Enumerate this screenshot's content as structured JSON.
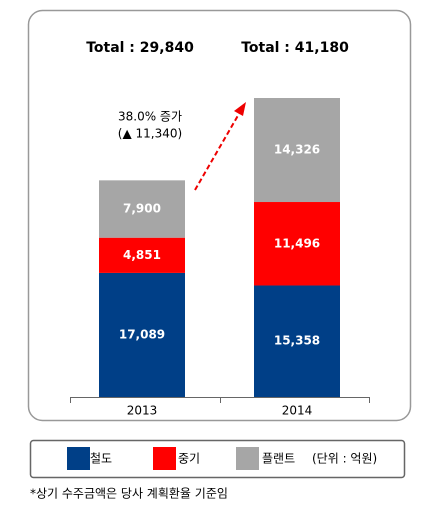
{
  "chart_data": {
    "type": "stacked_bar",
    "categories": [
      "2013",
      "2014"
    ],
    "series": [
      {
        "name": "철도",
        "color": "#003f87",
        "values": [
          17089,
          15358
        ],
        "value_labels": [
          "17,089",
          "15,358"
        ]
      },
      {
        "name": "중기",
        "color": "#ff0000",
        "values": [
          4851,
          11496
        ],
        "value_labels": [
          "4,851",
          "11,496"
        ]
      },
      {
        "name": "플랜트",
        "color": "#a6a6a6",
        "values": [
          7900,
          14326
        ],
        "value_labels": [
          "7,900",
          "14,326"
        ]
      }
    ],
    "total_labels": [
      "Total : 29,840",
      "Total : 41,180"
    ],
    "growth_label": "38.0% 증가",
    "growth_detail": "(▲ 11,340)",
    "unit_label": "(단위 : 억원)",
    "footnote": "*상기 수주금액은 당사 계획환율 기준임"
  }
}
